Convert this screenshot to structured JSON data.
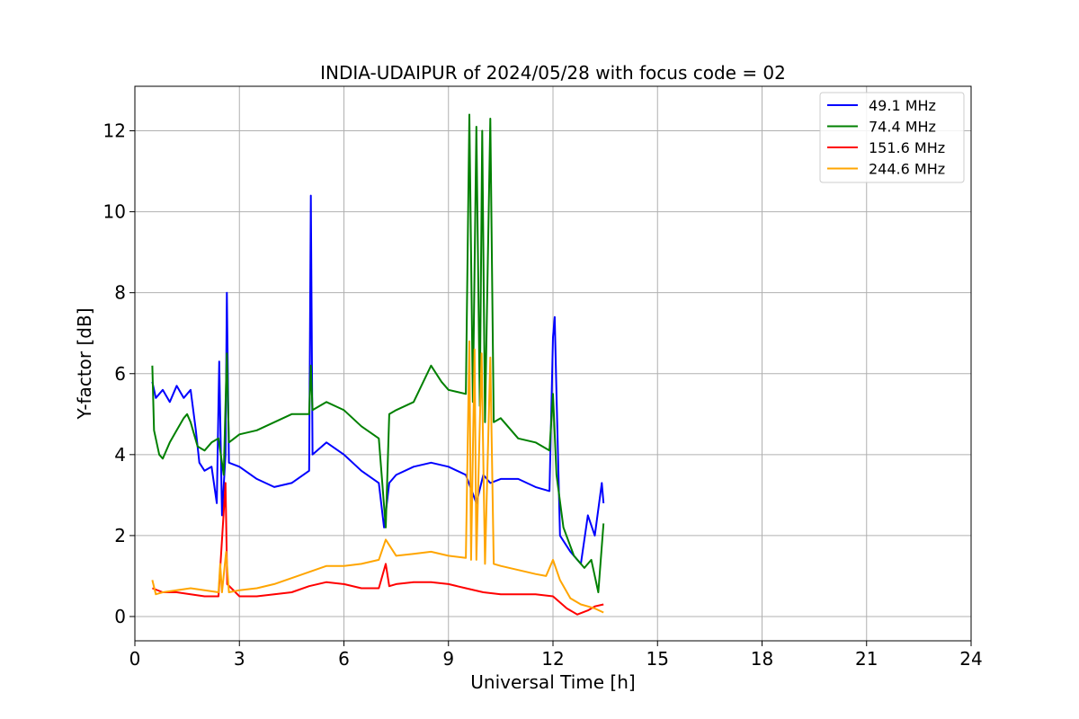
{
  "chart_data": {
    "type": "line",
    "title": "INDIA-UDAIPUR of 2024/05/28 with focus code = 02",
    "xlabel": "Universal Time [h]",
    "ylabel": "Y-factor [dB]",
    "xlim": [
      0,
      24
    ],
    "ylim": [
      -0.6,
      13.1
    ],
    "xticks": [
      "0",
      "3",
      "6",
      "9",
      "12",
      "15",
      "18",
      "21",
      "24"
    ],
    "yticks": [
      "0",
      "2",
      "4",
      "6",
      "8",
      "10",
      "12"
    ],
    "grid": true,
    "legend_position": "top-right",
    "series": [
      {
        "name": " 49.1 MHz",
        "color": "#0000ff",
        "points": [
          [
            0.5,
            5.8
          ],
          [
            0.6,
            5.4
          ],
          [
            0.8,
            5.6
          ],
          [
            1.0,
            5.3
          ],
          [
            1.2,
            5.7
          ],
          [
            1.4,
            5.4
          ],
          [
            1.6,
            5.6
          ],
          [
            1.75,
            4.6
          ],
          [
            1.85,
            3.8
          ],
          [
            2.0,
            3.6
          ],
          [
            2.2,
            3.7
          ],
          [
            2.35,
            2.8
          ],
          [
            2.42,
            6.3
          ],
          [
            2.5,
            2.5
          ],
          [
            2.6,
            4.0
          ],
          [
            2.64,
            8.0
          ],
          [
            2.7,
            3.8
          ],
          [
            3.0,
            3.7
          ],
          [
            3.5,
            3.4
          ],
          [
            4.0,
            3.2
          ],
          [
            4.5,
            3.3
          ],
          [
            5.0,
            3.6
          ],
          [
            5.05,
            10.4
          ],
          [
            5.1,
            4.0
          ],
          [
            5.5,
            4.3
          ],
          [
            6.0,
            4.0
          ],
          [
            6.5,
            3.6
          ],
          [
            7.0,
            3.3
          ],
          [
            7.15,
            2.2
          ],
          [
            7.3,
            3.3
          ],
          [
            7.5,
            3.5
          ],
          [
            8.0,
            3.7
          ],
          [
            8.5,
            3.8
          ],
          [
            9.0,
            3.7
          ],
          [
            9.5,
            3.5
          ],
          [
            9.8,
            2.8
          ],
          [
            10.0,
            3.5
          ],
          [
            10.2,
            3.3
          ],
          [
            10.5,
            3.4
          ],
          [
            11.0,
            3.4
          ],
          [
            11.5,
            3.2
          ],
          [
            11.9,
            3.1
          ],
          [
            12.0,
            6.9
          ],
          [
            12.05,
            7.4
          ],
          [
            12.1,
            5.5
          ],
          [
            12.2,
            2.0
          ],
          [
            12.5,
            1.6
          ],
          [
            12.8,
            1.3
          ],
          [
            13.0,
            2.5
          ],
          [
            13.2,
            2.0
          ],
          [
            13.4,
            3.3
          ],
          [
            13.45,
            2.8
          ]
        ]
      },
      {
        "name": " 74.4 MHz",
        "color": "#008000",
        "points": [
          [
            0.5,
            6.2
          ],
          [
            0.55,
            4.6
          ],
          [
            0.7,
            4.0
          ],
          [
            0.8,
            3.9
          ],
          [
            1.0,
            4.3
          ],
          [
            1.2,
            4.6
          ],
          [
            1.4,
            4.9
          ],
          [
            1.5,
            5.0
          ],
          [
            1.6,
            4.8
          ],
          [
            1.8,
            4.2
          ],
          [
            2.0,
            4.1
          ],
          [
            2.2,
            4.3
          ],
          [
            2.4,
            4.4
          ],
          [
            2.55,
            3.5
          ],
          [
            2.64,
            6.5
          ],
          [
            2.7,
            4.3
          ],
          [
            3.0,
            4.5
          ],
          [
            3.5,
            4.6
          ],
          [
            4.0,
            4.8
          ],
          [
            4.5,
            5.0
          ],
          [
            5.0,
            5.0
          ],
          [
            5.05,
            6.2
          ],
          [
            5.1,
            5.1
          ],
          [
            5.5,
            5.3
          ],
          [
            6.0,
            5.1
          ],
          [
            6.5,
            4.7
          ],
          [
            7.0,
            4.4
          ],
          [
            7.2,
            2.2
          ],
          [
            7.3,
            5.0
          ],
          [
            7.5,
            5.1
          ],
          [
            8.0,
            5.3
          ],
          [
            8.5,
            6.2
          ],
          [
            8.8,
            5.8
          ],
          [
            9.0,
            5.6
          ],
          [
            9.5,
            5.5
          ],
          [
            9.6,
            12.4
          ],
          [
            9.7,
            5.3
          ],
          [
            9.8,
            12.1
          ],
          [
            9.9,
            5.2
          ],
          [
            9.97,
            12.0
          ],
          [
            10.05,
            4.8
          ],
          [
            10.2,
            12.3
          ],
          [
            10.3,
            4.8
          ],
          [
            10.5,
            4.9
          ],
          [
            11.0,
            4.4
          ],
          [
            11.5,
            4.3
          ],
          [
            11.9,
            4.1
          ],
          [
            12.0,
            5.5
          ],
          [
            12.1,
            3.5
          ],
          [
            12.3,
            2.2
          ],
          [
            12.6,
            1.5
          ],
          [
            12.9,
            1.2
          ],
          [
            13.1,
            1.4
          ],
          [
            13.3,
            0.6
          ],
          [
            13.45,
            2.3
          ]
        ]
      },
      {
        "name": " 151.6 MHz",
        "color": "#ff0000",
        "points": [
          [
            0.5,
            0.7
          ],
          [
            0.8,
            0.6
          ],
          [
            1.2,
            0.6
          ],
          [
            1.6,
            0.55
          ],
          [
            2.0,
            0.5
          ],
          [
            2.4,
            0.5
          ],
          [
            2.6,
            3.3
          ],
          [
            2.65,
            0.8
          ],
          [
            3.0,
            0.5
          ],
          [
            3.5,
            0.5
          ],
          [
            4.0,
            0.55
          ],
          [
            4.5,
            0.6
          ],
          [
            5.0,
            0.75
          ],
          [
            5.5,
            0.85
          ],
          [
            6.0,
            0.8
          ],
          [
            6.5,
            0.7
          ],
          [
            7.0,
            0.7
          ],
          [
            7.2,
            1.3
          ],
          [
            7.3,
            0.75
          ],
          [
            7.5,
            0.8
          ],
          [
            8.0,
            0.85
          ],
          [
            8.5,
            0.85
          ],
          [
            9.0,
            0.8
          ],
          [
            9.5,
            0.7
          ],
          [
            10.0,
            0.6
          ],
          [
            10.5,
            0.55
          ],
          [
            11.0,
            0.55
          ],
          [
            11.5,
            0.55
          ],
          [
            12.0,
            0.5
          ],
          [
            12.4,
            0.2
          ],
          [
            12.7,
            0.05
          ],
          [
            13.0,
            0.15
          ],
          [
            13.2,
            0.25
          ],
          [
            13.45,
            0.3
          ]
        ]
      },
      {
        "name": " 244.6 MHz",
        "color": "#ffa500",
        "points": [
          [
            0.5,
            0.9
          ],
          [
            0.6,
            0.55
          ],
          [
            0.8,
            0.6
          ],
          [
            1.2,
            0.65
          ],
          [
            1.6,
            0.7
          ],
          [
            2.0,
            0.65
          ],
          [
            2.4,
            0.6
          ],
          [
            2.45,
            1.3
          ],
          [
            2.5,
            0.6
          ],
          [
            2.62,
            1.6
          ],
          [
            2.7,
            0.6
          ],
          [
            3.0,
            0.65
          ],
          [
            3.5,
            0.7
          ],
          [
            4.0,
            0.8
          ],
          [
            4.5,
            0.95
          ],
          [
            5.0,
            1.1
          ],
          [
            5.5,
            1.25
          ],
          [
            6.0,
            1.25
          ],
          [
            6.5,
            1.3
          ],
          [
            7.0,
            1.4
          ],
          [
            7.2,
            1.9
          ],
          [
            7.5,
            1.5
          ],
          [
            8.0,
            1.55
          ],
          [
            8.5,
            1.6
          ],
          [
            9.0,
            1.5
          ],
          [
            9.5,
            1.45
          ],
          [
            9.6,
            6.8
          ],
          [
            9.65,
            1.4
          ],
          [
            9.75,
            6.6
          ],
          [
            9.8,
            1.4
          ],
          [
            9.95,
            6.5
          ],
          [
            10.05,
            1.3
          ],
          [
            10.2,
            6.4
          ],
          [
            10.3,
            1.3
          ],
          [
            10.5,
            1.25
          ],
          [
            11.0,
            1.15
          ],
          [
            11.5,
            1.05
          ],
          [
            11.8,
            1.0
          ],
          [
            12.0,
            1.4
          ],
          [
            12.2,
            0.9
          ],
          [
            12.5,
            0.45
          ],
          [
            12.8,
            0.3
          ],
          [
            13.0,
            0.25
          ],
          [
            13.2,
            0.2
          ],
          [
            13.45,
            0.1
          ]
        ]
      }
    ]
  }
}
